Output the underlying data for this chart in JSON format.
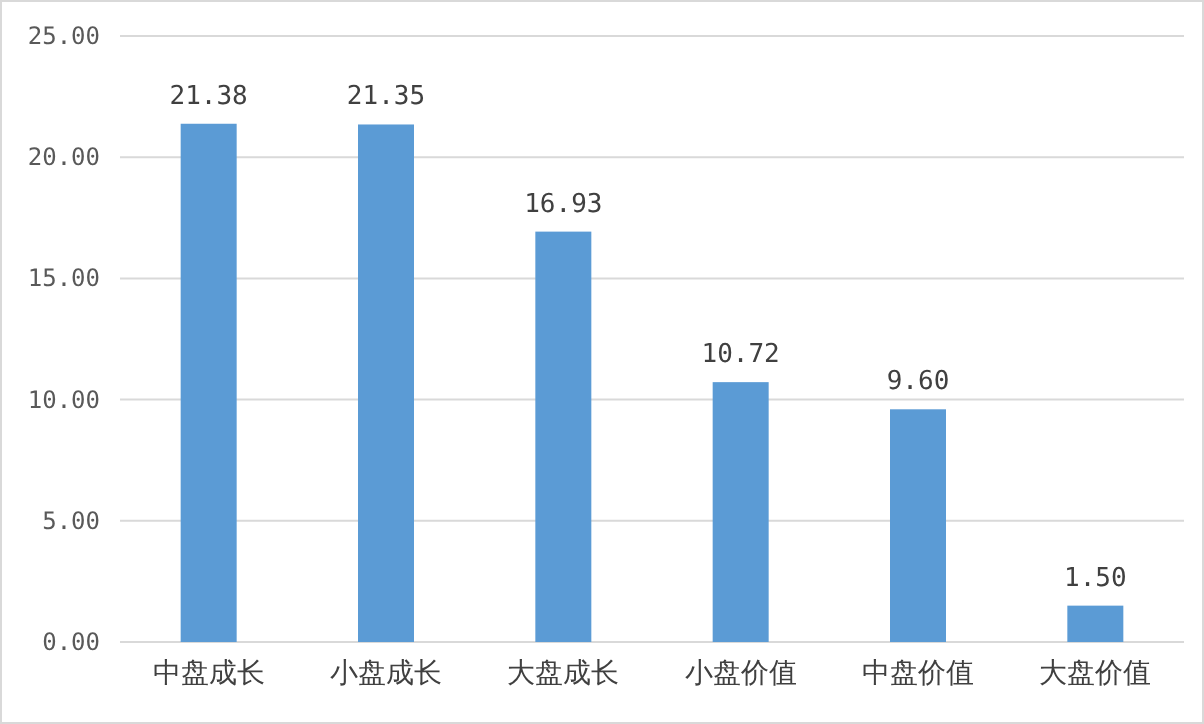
{
  "chart_data": {
    "type": "bar",
    "categories": [
      "中盘成长",
      "小盘成长",
      "大盘成长",
      "小盘价值",
      "中盘价值",
      "大盘价值"
    ],
    "values": [
      21.38,
      21.35,
      16.93,
      10.72,
      9.6,
      1.5
    ],
    "value_labels": [
      "21.38",
      "21.35",
      "16.93",
      "10.72",
      "9.60",
      "1.50"
    ],
    "color": "#5b9bd5",
    "ylim": [
      0,
      25
    ],
    "yticks": [
      {
        "value": 0,
        "label": "0.00"
      },
      {
        "value": 5,
        "label": "5.00"
      },
      {
        "value": 10,
        "label": "10.00"
      },
      {
        "value": 15,
        "label": "15.00"
      },
      {
        "value": 20,
        "label": "20.00"
      },
      {
        "value": 25,
        "label": "25.00"
      }
    ],
    "grid": "y"
  }
}
